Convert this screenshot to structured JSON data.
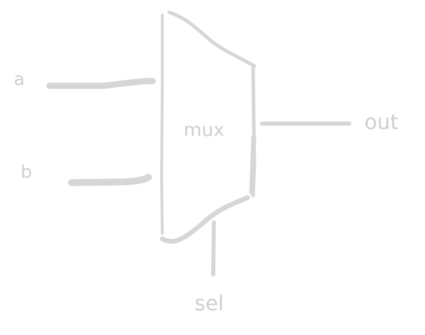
{
  "diagram": {
    "block_label": "mux",
    "inputs": [
      {
        "label": "a"
      },
      {
        "label": "b"
      }
    ],
    "output": {
      "label": "out"
    },
    "select": {
      "label": "sel"
    }
  },
  "colors": {
    "stroke": "#d6d6d6",
    "text": "#cfcfcf",
    "background": "#ffffff"
  }
}
